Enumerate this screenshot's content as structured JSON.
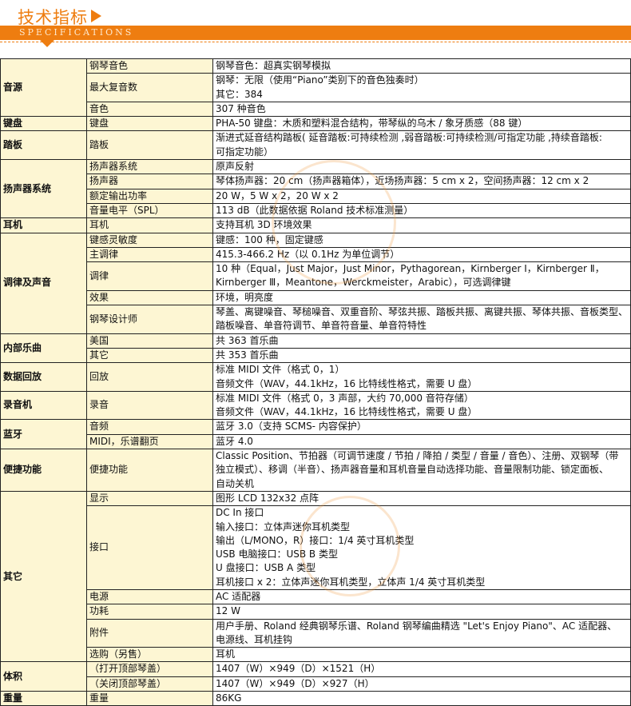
{
  "header": {
    "title": "技术指标",
    "subtitle": "SPECIFICATIONS",
    "accent_color": "#ee7d10"
  },
  "groups": [
    {
      "label": "音源",
      "rows": [
        {
          "name": "钢琴音色",
          "value": "钢琴音色：超真实钢琴模拟"
        },
        {
          "name": "最大复音数",
          "value": "钢琴：无限（使用“Piano”类别下的音色独奏时）\n其它：384"
        },
        {
          "name": "音色",
          "value": "307 种音色"
        }
      ]
    },
    {
      "label": "键盘",
      "rows": [
        {
          "name": "键盘",
          "value": "PHA-50 键盘：木质和塑料混合结构，带琴纵的乌木 / 象牙质感（88 键）"
        }
      ]
    },
    {
      "label": "踏板",
      "rows": [
        {
          "name": "踏板",
          "value": "渐进式延音结构踏板( 延音踏板:可持续检测 ,弱音踏板:可持续检测/可指定功能 ,持续音踏板:\n可指定功能）"
        }
      ]
    },
    {
      "label": "扬声器系统",
      "rows": [
        {
          "name": "扬声器系统",
          "value": "原声反射"
        },
        {
          "name": "扬声器",
          "value": "琴体扬声器：20 cm（扬声器箱体），近场扬声器：5 cm x 2，空间扬声器：12 cm x 2"
        },
        {
          "name": "额定输出功率",
          "value": "20 W，5 W x 2，20 W x 2"
        },
        {
          "name": "音量电平（SPL）",
          "value": "113 dB（此数据依据 Roland 技术标准测量）"
        }
      ]
    },
    {
      "label": "耳机",
      "rows": [
        {
          "name": "耳机",
          "value": "支持耳机 3D 环境效果"
        }
      ]
    },
    {
      "label": "调律及声音",
      "rows": [
        {
          "name": "键感灵敏度",
          "value": "键感：100 种，固定键感"
        },
        {
          "name": "主调律",
          "value": "415.3-466.2 Hz（以 0.1Hz 为单位调节）"
        },
        {
          "name": "调律",
          "value": "10 种（Equal，Just Major，Just Minor，Pythagorean，Kirnberger Ⅰ，Kirnberger Ⅱ，\nKirnberger Ⅲ，Meantone，Werckmeister，Arabic），可选调律键"
        },
        {
          "name": "效果",
          "value": "环境，明亮度"
        },
        {
          "name": "钢琴设计师",
          "value": "琴盖、离键噪音、琴槌噪音、双重音阶、琴弦共振、踏板共振、离键共振、琴体共振、音板类型、\n踏板噪音、单音符调节、单音符音量、单音符特性"
        }
      ]
    },
    {
      "label": "内部乐曲",
      "rows": [
        {
          "name": "美国",
          "value": "共 363 首乐曲"
        },
        {
          "name": "其它",
          "value": "共 353 首乐曲"
        }
      ]
    },
    {
      "label": "数据回放",
      "rows": [
        {
          "name": "回放",
          "value": "标准 MIDI 文件（格式 0，1）\n音频文件（WAV，44.1kHz，16 比特线性格式，需要 U 盘）"
        }
      ]
    },
    {
      "label": "录音机",
      "rows": [
        {
          "name": "录音",
          "value": "标准 MIDI 文件（格式 0，3 声部，大约 70,000 音符存储）\n音频文件（WAV，44.1kHz，16 比特线性格式，需要 U 盘）"
        }
      ]
    },
    {
      "label": "蓝牙",
      "rows": [
        {
          "name": "音频",
          "value": "蓝牙 3.0（支持 SCMS- 内容保护）"
        },
        {
          "name": "MIDI，乐谱翻页",
          "value": "蓝牙 4.0"
        }
      ]
    },
    {
      "label": "便捷功能",
      "rows": [
        {
          "name": "便捷功能",
          "value": "Classic Position、节拍器（可调节速度 / 节拍 / 降拍 / 类型 / 音量 / 音色）、注册、双钢琴（带\n独立模式）、移调（半音）、扬声器音量和耳机音量自动选择功能、音量限制功能、锁定面板、\n自动关机"
        }
      ]
    },
    {
      "label": "其它",
      "rows": [
        {
          "name": "显示",
          "value": "图形 LCD 132x32 点阵"
        },
        {
          "name": "接口",
          "value": "DC In 接口\n输入接口：立体声迷你耳机类型\n输出（L/MONO，R）接口：1/4 英寸耳机类型\nUSB 电脑接口：USB B 类型\nU 盘接口：USB A 类型\n耳机接口 x 2：立体声迷你耳机类型，立体声 1/4 英寸耳机类型"
        },
        {
          "name": "电源",
          "value": "AC 适配器"
        },
        {
          "name": "功耗",
          "value": "12 W"
        },
        {
          "name": "附件",
          "value": "用户手册、Roland 经典钢琴乐谱、Roland 钢琴编曲精选 \"Let's Enjoy Piano\"、AC 适配器、\n电源线、耳机挂钩"
        },
        {
          "name": "选购（另售）",
          "value": "耳机"
        }
      ]
    },
    {
      "label": "体积",
      "rows": [
        {
          "name": "（打开顶部琴盖）",
          "value": "1407（W）×949（D）×1521（H）"
        },
        {
          "name": "（关闭顶部琴盖）",
          "value": "1407（W）×949（D）×927（H）"
        }
      ]
    },
    {
      "label": "重量",
      "rows": [
        {
          "name": "重量",
          "value": "86KG"
        }
      ]
    }
  ]
}
